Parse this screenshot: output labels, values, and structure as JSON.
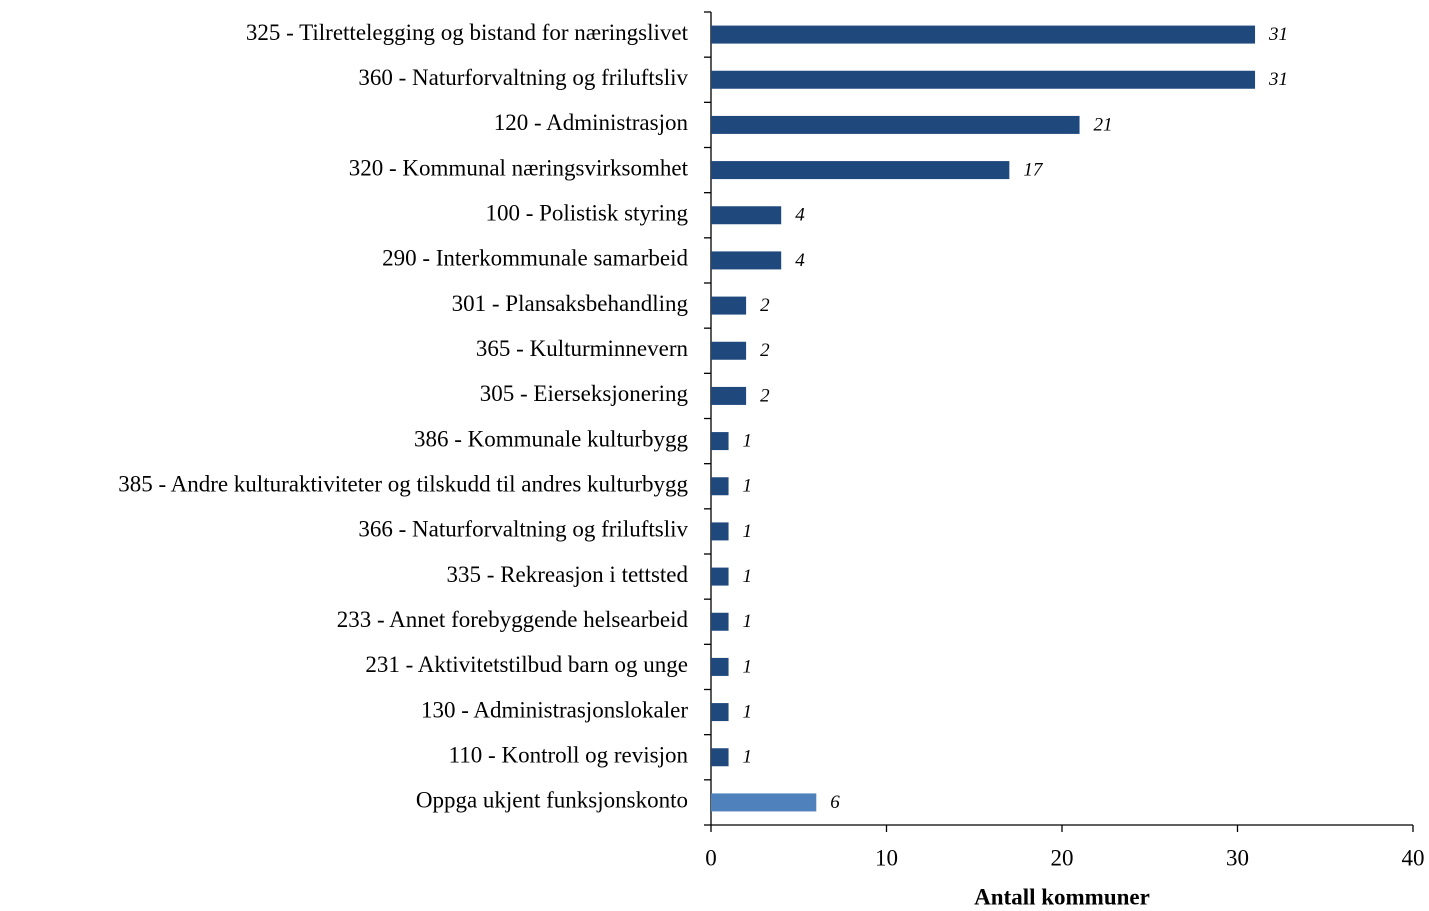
{
  "chart_data": {
    "type": "barh",
    "x_label": "Antall kommuner",
    "categories": [
      "325 - Tilrettelegging og bistand for næringslivet",
      "360 - Naturforvaltning og friluftsliv",
      "120 - Administrasjon",
      "320 - Kommunal næringsvirksomhet",
      "100 - Polistisk styring",
      "290 - Interkommunale samarbeid",
      "301 - Plansaksbehandling",
      "365 - Kulturminnevern",
      "305 - Eierseksjonering",
      "386 - Kommunale kulturbygg",
      "385 - Andre kulturaktiviteter og tilskudd til andres kulturbygg",
      "366 - Naturforvaltning og friluftsliv",
      "335 - Rekreasjon i tettsted",
      "233 - Annet forebyggende helsearbeid",
      "231 - Aktivitetstilbud barn og unge",
      "130 - Administrasjonslokaler",
      "110 - Kontroll og revisjon",
      "Oppga ukjent funksjonskonto"
    ],
    "values": [
      31,
      31,
      21,
      17,
      4,
      4,
      2,
      2,
      2,
      1,
      1,
      1,
      1,
      1,
      1,
      1,
      1,
      6
    ],
    "colors": [
      "#1f497d",
      "#1f497d",
      "#1f497d",
      "#1f497d",
      "#1f497d",
      "#1f497d",
      "#1f497d",
      "#1f497d",
      "#1f497d",
      "#1f497d",
      "#1f497d",
      "#1f497d",
      "#1f497d",
      "#1f497d",
      "#1f497d",
      "#1f497d",
      "#1f497d",
      "#4f81bd"
    ],
    "xlim": [
      0,
      40
    ],
    "xticks": [
      0,
      10,
      20,
      30,
      40
    ],
    "grid": false
  }
}
